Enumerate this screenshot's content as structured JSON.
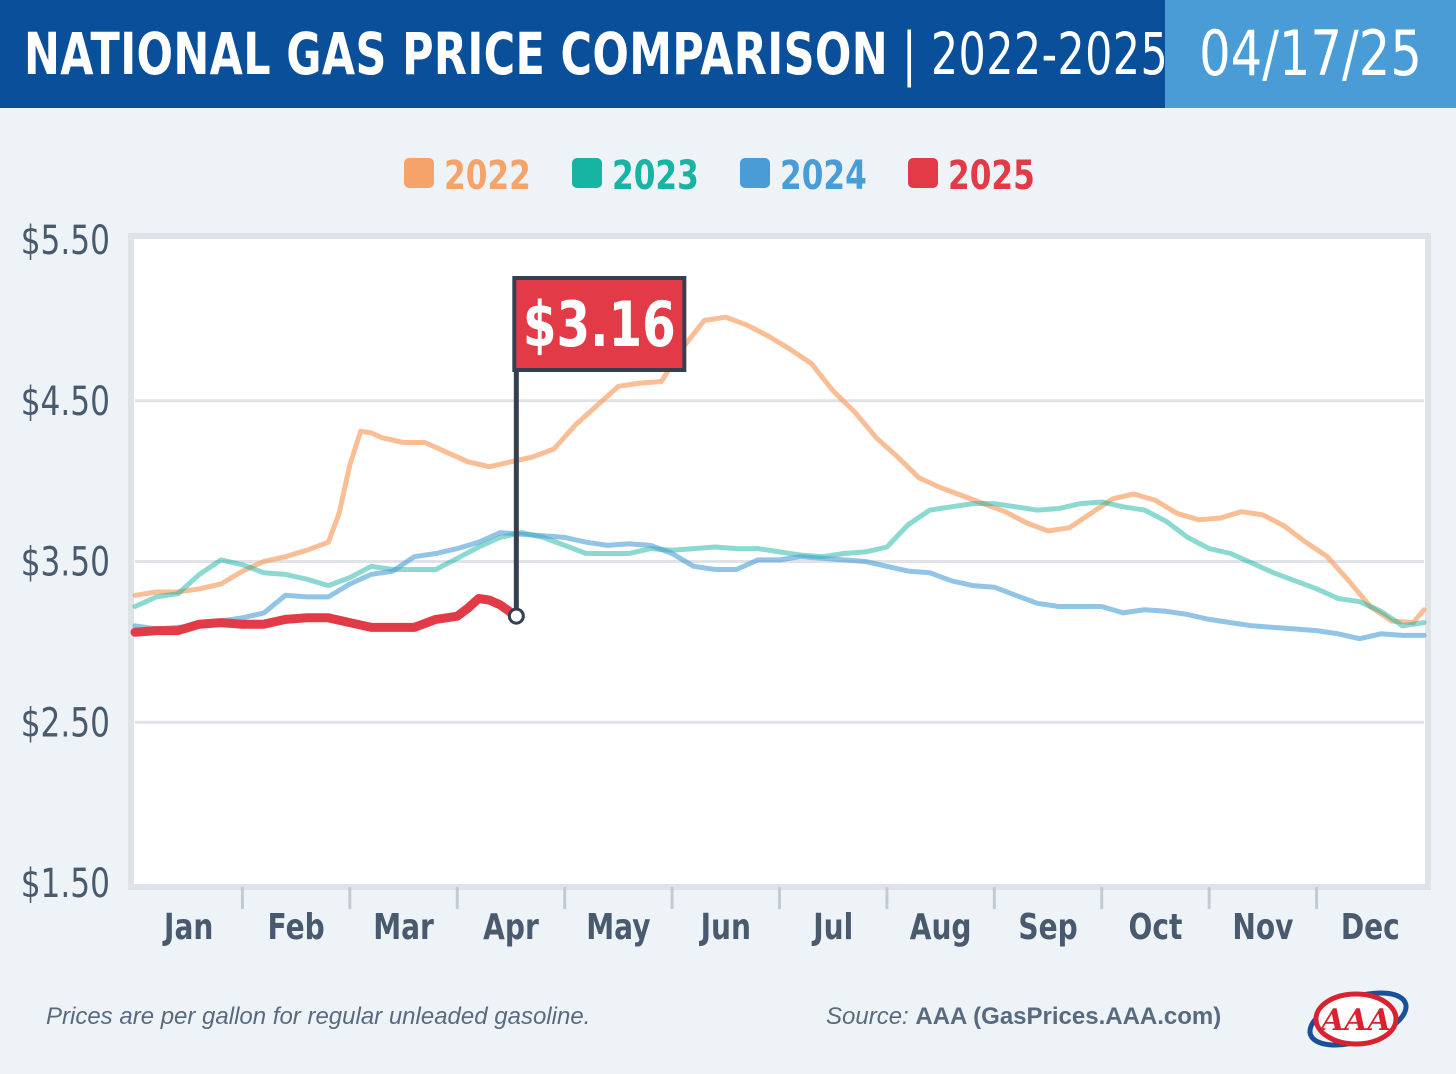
{
  "header": {
    "title_main": "NATIONAL GAS PRICE COMPARISON",
    "title_sep": "|",
    "title_years": "2022-2025",
    "date": "04/17/25"
  },
  "colors": {
    "header_dark": "#0a4f9a",
    "header_light": "#4a9cd6",
    "background": "#eef3f8",
    "grid": "#dfe2e7",
    "axis_text": "#4a5a6e",
    "s2022": "#f6a36a",
    "s2023": "#17b3a3",
    "s2024": "#4a9cd6",
    "s2025": "#e23b47",
    "flag": "#e23b47",
    "flag_pole": "#34404f"
  },
  "footer": {
    "note": "Prices are per gallon for regular unleaded gasoline.",
    "source_prefix": "Source:",
    "source_name": "AAA (GasPrices.AAA.com)",
    "logo_icon": "aaa-logo-icon",
    "logo_text": "AAA"
  },
  "chart_data": {
    "type": "line",
    "title": "NATIONAL GAS PRICE COMPARISON | 2022-2025",
    "ylabel": "",
    "xlabel": "",
    "ylim": [
      1.5,
      5.5
    ],
    "xlim": [
      0,
      12
    ],
    "yticks": [
      1.5,
      2.5,
      3.5,
      4.5,
      5.5
    ],
    "ytick_labels": [
      "$1.50",
      "$2.50",
      "$3.50",
      "$4.50",
      "$5.50"
    ],
    "categories": [
      "Jan",
      "Feb",
      "Mar",
      "Apr",
      "May",
      "Jun",
      "Jul",
      "Aug",
      "Sep",
      "Oct",
      "Nov",
      "Dec"
    ],
    "x_unit": "months since Jan 1",
    "grid": true,
    "legend_position": "top-center",
    "callout": {
      "label": "$3.16",
      "series": "2025",
      "x": 3.55,
      "y": 3.16
    },
    "series": [
      {
        "name": "2022",
        "color": "#f6a36a",
        "x": [
          0,
          0.2,
          0.4,
          0.6,
          0.8,
          1.0,
          1.2,
          1.4,
          1.6,
          1.8,
          1.9,
          2.0,
          2.1,
          2.2,
          2.3,
          2.5,
          2.7,
          2.9,
          3.1,
          3.3,
          3.5,
          3.7,
          3.9,
          4.1,
          4.3,
          4.5,
          4.7,
          4.9,
          5.1,
          5.3,
          5.5,
          5.7,
          5.9,
          6.1,
          6.3,
          6.5,
          6.7,
          6.9,
          7.1,
          7.3,
          7.5,
          7.7,
          7.9,
          8.1,
          8.3,
          8.5,
          8.7,
          8.9,
          9.1,
          9.3,
          9.5,
          9.7,
          9.9,
          10.1,
          10.3,
          10.5,
          10.7,
          10.9,
          11.1,
          11.3,
          11.5,
          11.7,
          11.9,
          12.0
        ],
        "values": [
          3.29,
          3.31,
          3.31,
          3.33,
          3.36,
          3.44,
          3.5,
          3.53,
          3.57,
          3.62,
          3.8,
          4.1,
          4.31,
          4.3,
          4.27,
          4.24,
          4.24,
          4.18,
          4.12,
          4.09,
          4.12,
          4.15,
          4.2,
          4.35,
          4.47,
          4.59,
          4.61,
          4.62,
          4.83,
          5.0,
          5.02,
          4.97,
          4.9,
          4.82,
          4.73,
          4.56,
          4.43,
          4.27,
          4.15,
          4.02,
          3.96,
          3.91,
          3.86,
          3.81,
          3.74,
          3.69,
          3.71,
          3.8,
          3.89,
          3.92,
          3.88,
          3.8,
          3.76,
          3.77,
          3.81,
          3.79,
          3.72,
          3.62,
          3.53,
          3.38,
          3.22,
          3.13,
          3.12,
          3.2
        ]
      },
      {
        "name": "2023",
        "color": "#17b3a3",
        "x": [
          0,
          0.2,
          0.4,
          0.6,
          0.8,
          1.0,
          1.2,
          1.4,
          1.6,
          1.8,
          2.0,
          2.2,
          2.4,
          2.6,
          2.8,
          3.0,
          3.2,
          3.4,
          3.6,
          3.8,
          4.0,
          4.2,
          4.4,
          4.6,
          4.8,
          5.0,
          5.2,
          5.4,
          5.6,
          5.8,
          6.0,
          6.2,
          6.4,
          6.6,
          6.8,
          7.0,
          7.2,
          7.4,
          7.6,
          7.8,
          8.0,
          8.2,
          8.4,
          8.6,
          8.8,
          9.0,
          9.2,
          9.4,
          9.6,
          9.8,
          10.0,
          10.2,
          10.4,
          10.6,
          10.8,
          11.0,
          11.2,
          11.4,
          11.6,
          11.8,
          12.0
        ],
        "values": [
          3.22,
          3.28,
          3.3,
          3.42,
          3.51,
          3.48,
          3.43,
          3.42,
          3.39,
          3.35,
          3.4,
          3.47,
          3.45,
          3.45,
          3.45,
          3.52,
          3.59,
          3.65,
          3.68,
          3.65,
          3.6,
          3.55,
          3.55,
          3.55,
          3.58,
          3.57,
          3.58,
          3.59,
          3.58,
          3.58,
          3.56,
          3.54,
          3.53,
          3.55,
          3.56,
          3.59,
          3.73,
          3.82,
          3.84,
          3.86,
          3.86,
          3.84,
          3.82,
          3.83,
          3.86,
          3.87,
          3.84,
          3.82,
          3.75,
          3.65,
          3.58,
          3.55,
          3.49,
          3.43,
          3.38,
          3.33,
          3.27,
          3.25,
          3.19,
          3.1,
          3.12
        ]
      },
      {
        "name": "2024",
        "color": "#4a9cd6",
        "x": [
          0,
          0.2,
          0.4,
          0.6,
          0.8,
          1.0,
          1.2,
          1.4,
          1.6,
          1.8,
          2.0,
          2.2,
          2.4,
          2.6,
          2.8,
          3.0,
          3.2,
          3.4,
          3.6,
          3.8,
          4.0,
          4.2,
          4.4,
          4.6,
          4.8,
          5.0,
          5.2,
          5.4,
          5.6,
          5.8,
          6.0,
          6.2,
          6.4,
          6.6,
          6.8,
          7.0,
          7.2,
          7.4,
          7.6,
          7.8,
          8.0,
          8.2,
          8.4,
          8.6,
          8.8,
          9.0,
          9.2,
          9.4,
          9.6,
          9.8,
          10.0,
          10.2,
          10.4,
          10.6,
          10.8,
          11.0,
          11.2,
          11.4,
          11.6,
          11.8,
          12.0
        ],
        "values": [
          3.1,
          3.08,
          3.09,
          3.1,
          3.13,
          3.15,
          3.18,
          3.29,
          3.28,
          3.28,
          3.36,
          3.42,
          3.44,
          3.53,
          3.55,
          3.58,
          3.62,
          3.68,
          3.67,
          3.66,
          3.65,
          3.62,
          3.6,
          3.61,
          3.6,
          3.55,
          3.47,
          3.45,
          3.45,
          3.51,
          3.51,
          3.53,
          3.52,
          3.51,
          3.5,
          3.47,
          3.44,
          3.43,
          3.38,
          3.35,
          3.34,
          3.29,
          3.24,
          3.22,
          3.22,
          3.22,
          3.18,
          3.2,
          3.19,
          3.17,
          3.14,
          3.12,
          3.1,
          3.09,
          3.08,
          3.07,
          3.05,
          3.02,
          3.05,
          3.04,
          3.04
        ]
      },
      {
        "name": "2025",
        "color": "#e23b47",
        "x": [
          0,
          0.2,
          0.4,
          0.6,
          0.8,
          1.0,
          1.2,
          1.4,
          1.6,
          1.8,
          2.0,
          2.2,
          2.4,
          2.6,
          2.8,
          3.0,
          3.1,
          3.2,
          3.3,
          3.4,
          3.55
        ],
        "values": [
          3.06,
          3.07,
          3.07,
          3.11,
          3.12,
          3.11,
          3.11,
          3.14,
          3.15,
          3.15,
          3.12,
          3.09,
          3.09,
          3.09,
          3.14,
          3.16,
          3.21,
          3.27,
          3.26,
          3.23,
          3.16
        ]
      }
    ]
  }
}
